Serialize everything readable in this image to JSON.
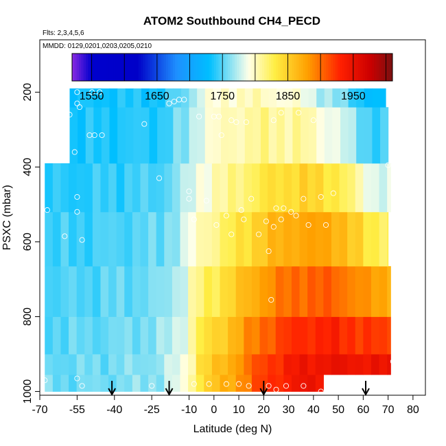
{
  "chart_data": {
    "type": "heatmap",
    "title": "ATOM2 Southbound CH4_PECD",
    "flights_note": "Flts: 2,3,4,5,6",
    "dates_note": "MMDD: 0129,0201,0203,0205,0210",
    "xlabel": "Latitude (deg N)",
    "ylabel": "PSXC (mbar)",
    "xlim": [
      -70,
      85
    ],
    "ylim": [
      1010,
      60
    ],
    "x_ticks": [
      -70,
      -55,
      -40,
      -25,
      -10,
      0,
      10,
      20,
      30,
      40,
      50,
      60,
      70,
      80
    ],
    "y_ticks": [
      200,
      400,
      600,
      800,
      1000
    ],
    "colorbar": {
      "range": [
        1520,
        2010
      ],
      "tick_values": [
        1550,
        1650,
        1750,
        1850,
        1950
      ],
      "tick_labels": [
        "1550",
        "1650",
        "1750",
        "1850",
        "1950"
      ],
      "divisions": [
        1550,
        1600,
        1650,
        1700,
        1750,
        1800,
        1850,
        1900,
        1950,
        2000
      ],
      "stops": [
        {
          "v": 1520,
          "c": "#8a2be2"
        },
        {
          "v": 1550,
          "c": "#0000cd"
        },
        {
          "v": 1620,
          "c": "#0000c8"
        },
        {
          "v": 1680,
          "c": "#1e90ff"
        },
        {
          "v": 1730,
          "c": "#00bfff"
        },
        {
          "v": 1790,
          "c": "#ffffe8"
        },
        {
          "v": 1830,
          "c": "#ffee44"
        },
        {
          "v": 1880,
          "c": "#ffa000"
        },
        {
          "v": 1930,
          "c": "#ff2000"
        },
        {
          "v": 1975,
          "c": "#cd0000"
        },
        {
          "v": 2010,
          "c": "#7a1010"
        }
      ]
    },
    "field": {
      "lat_nodes": [
        -58,
        -40,
        -22,
        -12,
        -5,
        8,
        20,
        35,
        50,
        62,
        72
      ],
      "surface_ch4": [
        1755,
        1758,
        1765,
        1790,
        1840,
        1878,
        1920,
        1945,
        1950,
        1948,
        1948
      ],
      "upper_ch4": [
        1740,
        1745,
        1750,
        1772,
        1795,
        1815,
        1840,
        1860,
        1850,
        1800,
        1790
      ],
      "top_ch4": [
        1730,
        1735,
        1735,
        1755,
        1785,
        1800,
        1800,
        1790,
        1760,
        1730,
        1720
      ],
      "lat_min": [
        -68,
        -68,
        -68,
        -68,
        -68,
        -68,
        -58,
        -58
      ],
      "layers": [
        {
          "p0": 1000,
          "p1": 955,
          "lat_max": 44
        },
        {
          "p0": 955,
          "p1": 900,
          "lat_max": 71
        },
        {
          "p0": 900,
          "p1": 800,
          "lat_max": 71
        },
        {
          "p0": 800,
          "p1": 665,
          "lat_max": 71
        },
        {
          "p0": 665,
          "p1": 520,
          "lat_max": 70
        },
        {
          "p0": 520,
          "p1": 390,
          "lat_max": 71
        },
        {
          "p0": 390,
          "p1": 240,
          "lat_max": 70
        },
        {
          "p0": 240,
          "p1": 190,
          "lat_max": 69
        }
      ]
    },
    "samples": [
      {
        "lat": -55,
        "p": 200
      },
      {
        "lat": -49,
        "p": 200
      },
      {
        "lat": -46,
        "p": 200
      },
      {
        "lat": -68,
        "p": 240
      },
      {
        "lat": -55,
        "p": 230
      },
      {
        "lat": -54,
        "p": 240
      },
      {
        "lat": -63,
        "p": 260
      },
      {
        "lat": -58,
        "p": 260
      },
      {
        "lat": -18,
        "p": 230
      },
      {
        "lat": -16,
        "p": 225
      },
      {
        "lat": -14,
        "p": 220
      },
      {
        "lat": -12,
        "p": 220
      },
      {
        "lat": -6,
        "p": 265
      },
      {
        "lat": 0,
        "p": 265
      },
      {
        "lat": 2,
        "p": 265
      },
      {
        "lat": -28,
        "p": 285
      },
      {
        "lat": 7,
        "p": 275
      },
      {
        "lat": 9,
        "p": 280
      },
      {
        "lat": 13,
        "p": 280
      },
      {
        "lat": 24,
        "p": 275
      },
      {
        "lat": 27,
        "p": 255
      },
      {
        "lat": 34,
        "p": 255
      },
      {
        "lat": 40,
        "p": 275
      },
      {
        "lat": -50,
        "p": 315
      },
      {
        "lat": -48,
        "p": 315
      },
      {
        "lat": -45,
        "p": 315
      },
      {
        "lat": 3,
        "p": 315
      },
      {
        "lat": -56,
        "p": 360
      },
      {
        "lat": -22,
        "p": 430
      },
      {
        "lat": -10,
        "p": 465
      },
      {
        "lat": -10,
        "p": 485
      },
      {
        "lat": -3,
        "p": 490
      },
      {
        "lat": 15,
        "p": 485
      },
      {
        "lat": 48,
        "p": 470
      },
      {
        "lat": 43,
        "p": 480
      },
      {
        "lat": 36,
        "p": 485
      },
      {
        "lat": 25,
        "p": 510
      },
      {
        "lat": 28,
        "p": 510
      },
      {
        "lat": 31,
        "p": 520
      },
      {
        "lat": 11,
        "p": 515
      },
      {
        "lat": 5,
        "p": 530
      },
      {
        "lat": -55,
        "p": 480
      },
      {
        "lat": -55,
        "p": 520
      },
      {
        "lat": -67,
        "p": 515
      },
      {
        "lat": 70,
        "p": 395
      },
      {
        "lat": 1,
        "p": 555
      },
      {
        "lat": 12,
        "p": 540
      },
      {
        "lat": 24,
        "p": 560
      },
      {
        "lat": 27,
        "p": 540
      },
      {
        "lat": 33,
        "p": 530
      },
      {
        "lat": 38,
        "p": 555
      },
      {
        "lat": 45,
        "p": 555
      },
      {
        "lat": 21,
        "p": 545
      },
      {
        "lat": -8,
        "p": 540
      },
      {
        "lat": 7,
        "p": 580
      },
      {
        "lat": 18,
        "p": 580
      },
      {
        "lat": 22,
        "p": 625
      },
      {
        "lat": -60,
        "p": 585
      },
      {
        "lat": -53,
        "p": 595
      },
      {
        "lat": 23,
        "p": 755
      },
      {
        "lat": 72,
        "p": 920
      },
      {
        "lat": -55,
        "p": 965
      },
      {
        "lat": -53,
        "p": 985
      },
      {
        "lat": -8,
        "p": 980
      },
      {
        "lat": -2,
        "p": 980
      },
      {
        "lat": 5,
        "p": 980
      },
      {
        "lat": 10,
        "p": 980
      },
      {
        "lat": 14,
        "p": 985
      },
      {
        "lat": 22,
        "p": 985
      },
      {
        "lat": 25,
        "p": 995
      },
      {
        "lat": 29,
        "p": 985
      },
      {
        "lat": 36,
        "p": 985
      },
      {
        "lat": 43,
        "p": 1000
      },
      {
        "lat": -68,
        "p": 970
      },
      {
        "lat": -25,
        "p": 985
      }
    ],
    "markers_lat": [
      -41,
      -18,
      20,
      61
    ]
  }
}
